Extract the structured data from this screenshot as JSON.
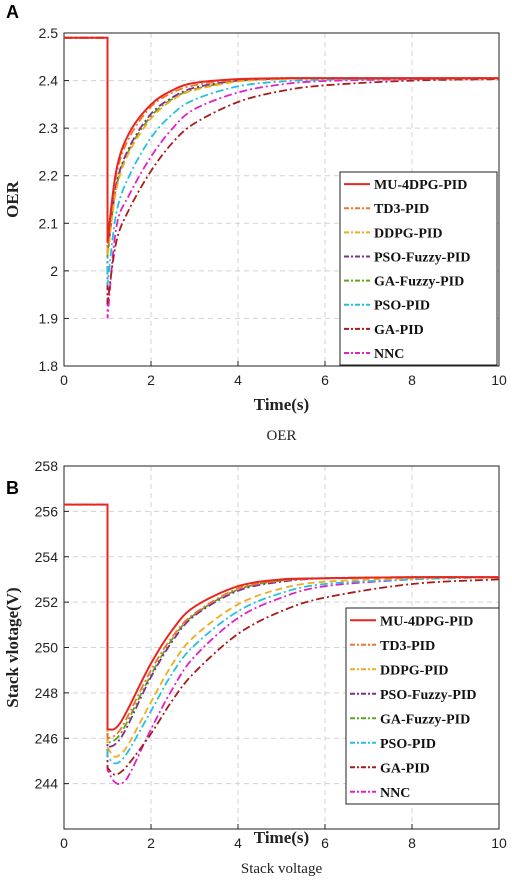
{
  "colors": {
    "MU-4DPG-PID": "#e8261f",
    "TD3-PID": "#f27528",
    "DDPG-PID": "#f3ab1d",
    "PSO-Fuzzy-PID": "#7e2f8e",
    "GA-Fuzzy-PID": "#5fa41d",
    "PSO-PID": "#24c1e0",
    "GA-PID": "#a81c1c",
    "NNC": "#e020c8"
  },
  "chart_data": [
    {
      "type": "line",
      "panel": "A",
      "xlabel": "Time(s)",
      "ylabel": "OER",
      "caption": "OER",
      "xlim": [
        0,
        10
      ],
      "ylim": [
        1.8,
        2.5
      ],
      "xticks": [
        "0",
        "2",
        "4",
        "6",
        "8",
        "10"
      ],
      "yticks": [
        "1.8",
        "1.9",
        "2",
        "2.1",
        "2.2",
        "2.3",
        "2.4",
        "2.5"
      ],
      "grid": true,
      "legend_position": "bottom-right",
      "x": [
        0,
        1,
        1,
        1.2,
        1.5,
        2,
        2.5,
        3,
        4,
        5,
        6,
        8,
        10
      ],
      "series": [
        {
          "name": "MU-4DPG-PID",
          "style": "solid",
          "values": [
            2.49,
            2.49,
            2.06,
            2.21,
            2.29,
            2.35,
            2.38,
            2.395,
            2.403,
            2.405,
            2.405,
            2.405,
            2.405
          ]
        },
        {
          "name": "TD3-PID",
          "style": "dashdot",
          "values": [
            2.49,
            2.49,
            2.05,
            2.2,
            2.28,
            2.345,
            2.375,
            2.39,
            2.402,
            2.405,
            2.405,
            2.405,
            2.405
          ]
        },
        {
          "name": "DDPG-PID",
          "style": "dashed",
          "values": [
            2.49,
            2.49,
            2.03,
            2.17,
            2.25,
            2.32,
            2.36,
            2.38,
            2.398,
            2.403,
            2.405,
            2.405,
            2.405
          ]
        },
        {
          "name": "PSO-Fuzzy-PID",
          "style": "dashdot",
          "values": [
            2.49,
            2.49,
            2.04,
            2.18,
            2.26,
            2.33,
            2.365,
            2.385,
            2.4,
            2.404,
            2.405,
            2.405,
            2.405
          ]
        },
        {
          "name": "GA-Fuzzy-PID",
          "style": "dashdot",
          "values": [
            2.49,
            2.49,
            2.03,
            2.175,
            2.255,
            2.325,
            2.362,
            2.382,
            2.399,
            2.404,
            2.405,
            2.405,
            2.405
          ]
        },
        {
          "name": "PSO-PID",
          "style": "dashdot",
          "values": [
            2.49,
            2.49,
            1.97,
            2.12,
            2.2,
            2.28,
            2.33,
            2.36,
            2.388,
            2.398,
            2.402,
            2.404,
            2.405
          ]
        },
        {
          "name": "GA-PID",
          "style": "dashdot",
          "values": [
            2.49,
            2.49,
            1.93,
            2.06,
            2.13,
            2.21,
            2.27,
            2.31,
            2.355,
            2.378,
            2.39,
            2.4,
            2.403
          ]
        },
        {
          "name": "NNC",
          "style": "dashdot",
          "values": [
            2.49,
            2.49,
            1.9,
            2.09,
            2.16,
            2.24,
            2.3,
            2.34,
            2.375,
            2.392,
            2.399,
            2.403,
            2.405
          ]
        }
      ]
    },
    {
      "type": "line",
      "panel": "B",
      "xlabel": "Time(s)",
      "ylabel": "Stack vlotage(V)",
      "caption": "Stack voltage",
      "xlim": [
        0,
        10
      ],
      "ylim": [
        242,
        258
      ],
      "xticks": [
        "0",
        "2",
        "4",
        "6",
        "8",
        "10"
      ],
      "yticks": [
        "244",
        "246",
        "248",
        "250",
        "252",
        "254",
        "256",
        "258"
      ],
      "grid": true,
      "legend_position": "bottom-right",
      "x": [
        0,
        1,
        1,
        1.15,
        1.3,
        1.5,
        2,
        2.5,
        3,
        4,
        5,
        6,
        8,
        10
      ],
      "series": [
        {
          "name": "MU-4DPG-PID",
          "style": "solid",
          "values": [
            256.3,
            256.3,
            246.4,
            246.4,
            246.7,
            247.4,
            249.3,
            250.8,
            251.8,
            252.7,
            253.0,
            253.05,
            253.1,
            253.1
          ]
        },
        {
          "name": "TD3-PID",
          "style": "dashdot",
          "values": [
            256.3,
            256.3,
            246.0,
            246.1,
            246.4,
            247.1,
            249.0,
            250.5,
            251.5,
            252.6,
            252.95,
            253.05,
            253.1,
            253.1
          ]
        },
        {
          "name": "DDPG-PID",
          "style": "dashed",
          "values": [
            256.3,
            256.3,
            245.6,
            245.2,
            245.3,
            245.8,
            247.6,
            249.3,
            250.5,
            251.9,
            252.6,
            252.9,
            253.05,
            253.1
          ]
        },
        {
          "name": "PSO-Fuzzy-PID",
          "style": "dashdot",
          "values": [
            256.3,
            256.3,
            245.6,
            245.7,
            246.0,
            246.7,
            248.7,
            250.3,
            251.4,
            252.5,
            252.9,
            253.05,
            253.1,
            253.1
          ]
        },
        {
          "name": "GA-Fuzzy-PID",
          "style": "dashdot",
          "values": [
            256.3,
            256.3,
            245.8,
            245.9,
            246.2,
            246.9,
            248.8,
            250.4,
            251.45,
            252.55,
            252.95,
            253.05,
            253.1,
            253.1
          ]
        },
        {
          "name": "PSO-PID",
          "style": "dashdot",
          "values": [
            256.3,
            256.3,
            245.2,
            244.9,
            245.0,
            245.5,
            247.2,
            248.9,
            250.1,
            251.6,
            252.4,
            252.8,
            253.0,
            253.1
          ]
        },
        {
          "name": "GA-PID",
          "style": "dashdot",
          "values": [
            256.3,
            256.3,
            244.7,
            244.4,
            244.5,
            244.9,
            246.2,
            247.7,
            248.9,
            250.6,
            251.6,
            252.2,
            252.8,
            253.0
          ]
        },
        {
          "name": "NNC",
          "style": "dashdot",
          "values": [
            256.3,
            256.3,
            244.6,
            244.1,
            244.0,
            244.4,
            246.4,
            248.2,
            249.6,
            251.3,
            252.2,
            252.7,
            253.0,
            253.1
          ]
        }
      ]
    }
  ]
}
